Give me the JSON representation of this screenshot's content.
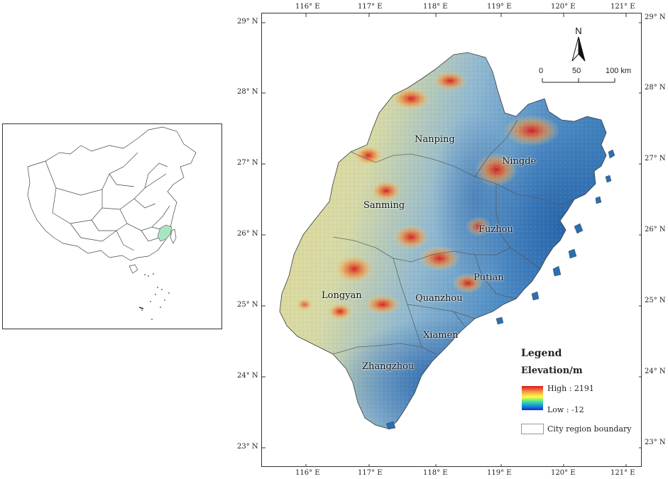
{
  "inset": {
    "highlight_color": "#a8e6c3"
  },
  "map": {
    "longitude_labels": [
      "116° E",
      "117° E",
      "118° E",
      "119° E",
      "120° E",
      "121° E"
    ],
    "latitude_labels": [
      "29° N",
      "28° N",
      "27° N",
      "26° N",
      "25° N",
      "24° N",
      "23° N"
    ],
    "cities": [
      {
        "name": "Nanping"
      },
      {
        "name": "Ningde"
      },
      {
        "name": "Sanming"
      },
      {
        "name": "Fuzhou"
      },
      {
        "name": "Putian"
      },
      {
        "name": "Longyan"
      },
      {
        "name": "Quanzhou"
      },
      {
        "name": "Xiamen"
      },
      {
        "name": "Zhangzhou"
      }
    ]
  },
  "north_arrow": {
    "label": "N"
  },
  "scale_bar": {
    "labels": [
      "0",
      "50",
      "100 km"
    ]
  },
  "legend": {
    "title": "Legend",
    "subtitle": "Elevation/m",
    "high": "High : 2191",
    "low": "Low : -12",
    "boundary": "City region boundary"
  },
  "colors": {
    "high": "#d7191c",
    "mid_high": "#f5a04a",
    "mid": "#f3e6a0",
    "mid_low": "#a7c9d8",
    "low": "#2b6fb0"
  }
}
